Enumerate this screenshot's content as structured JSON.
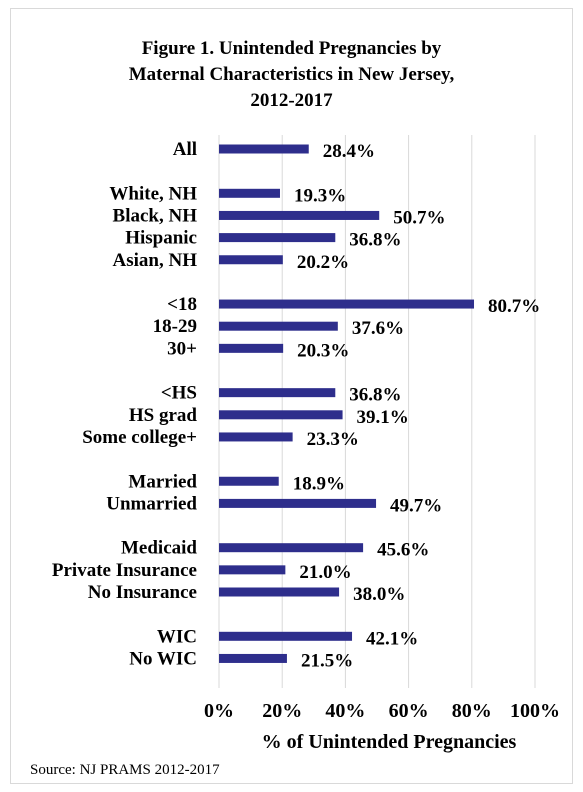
{
  "chart_data": {
    "type": "bar",
    "orientation": "horizontal",
    "title_lines": [
      "Figure 1.  Unintended Pregnancies by",
      "Maternal Characteristics in New Jersey,",
      "2012-2017"
    ],
    "xlabel": "% of Unintended Pregnancies",
    "xlim": [
      0,
      100
    ],
    "xticks": [
      "0%",
      "20%",
      "40%",
      "60%",
      "80%",
      "100%"
    ],
    "grid": true,
    "bar_color": "#2e2e8c",
    "categories": [
      "All",
      "White, NH",
      "Black, NH",
      "Hispanic",
      "Asian, NH",
      "<18",
      "18-29",
      "30+",
      "<HS",
      "HS grad",
      "Some college+",
      "Married",
      "Unmarried",
      "Medicaid",
      "Private Insurance",
      "No Insurance",
      "WIC",
      "No WIC"
    ],
    "values": [
      28.4,
      19.3,
      50.7,
      36.8,
      20.2,
      80.7,
      37.6,
      20.3,
      36.8,
      39.1,
      23.3,
      18.9,
      49.7,
      45.6,
      21.0,
      38.0,
      42.1,
      21.5
    ],
    "value_labels": [
      "28.4%",
      "19.3%",
      "50.7%",
      "36.8%",
      "20.2%",
      "80.7%",
      "37.6%",
      "20.3%",
      "36.8%",
      "39.1%",
      "23.3%",
      "18.9%",
      "49.7%",
      "45.6%",
      "21.0%",
      "38.0%",
      "42.1%",
      "21.5%"
    ],
    "groups": [
      1,
      4,
      3,
      3,
      2,
      3,
      2
    ]
  },
  "source": "Source: NJ PRAMS 2012-2017"
}
